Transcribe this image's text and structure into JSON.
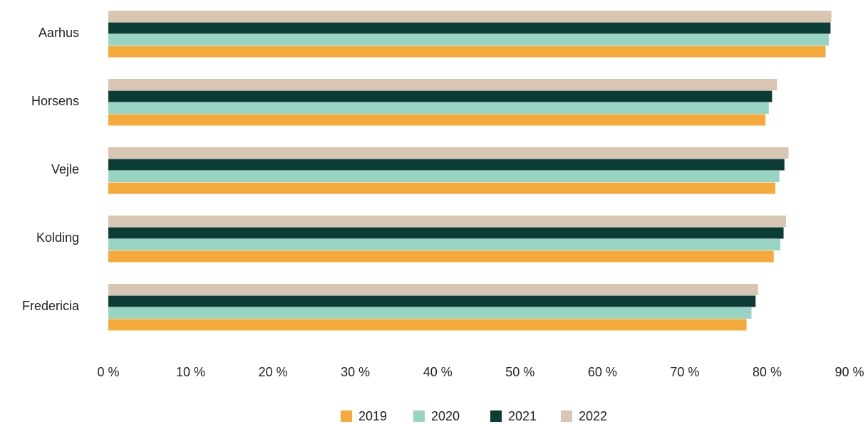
{
  "chart_data": {
    "type": "hbar",
    "categories": [
      "Aarhus",
      "Horsens",
      "Vejle",
      "Kolding",
      "Fredericia"
    ],
    "series": [
      {
        "name": "2019",
        "color": "#f5a93a",
        "values": [
          87.1,
          79.8,
          81.0,
          80.8,
          77.5
        ]
      },
      {
        "name": "2020",
        "color": "#98d4c3",
        "values": [
          87.5,
          80.2,
          81.5,
          81.6,
          78.1
        ]
      },
      {
        "name": "2021",
        "color": "#0b3d35",
        "values": [
          87.7,
          80.6,
          82.1,
          82.0,
          78.6
        ]
      },
      {
        "name": "2022",
        "color": "#d8c5b2",
        "values": [
          87.8,
          81.2,
          82.6,
          82.3,
          78.9
        ]
      }
    ],
    "xlim": [
      0,
      90
    ],
    "xticks": [
      {
        "value": 0,
        "label": "0 %"
      },
      {
        "value": 10,
        "label": "10 %"
      },
      {
        "value": 20,
        "label": "20 %"
      },
      {
        "value": 30,
        "label": "30 %"
      },
      {
        "value": 40,
        "label": "40 %"
      },
      {
        "value": 50,
        "label": "50 %"
      },
      {
        "value": 60,
        "label": "60 %"
      },
      {
        "value": 70,
        "label": "70 %"
      },
      {
        "value": 80,
        "label": "80 %"
      },
      {
        "value": 90,
        "label": "90 %"
      }
    ],
    "legend": "bottom"
  }
}
